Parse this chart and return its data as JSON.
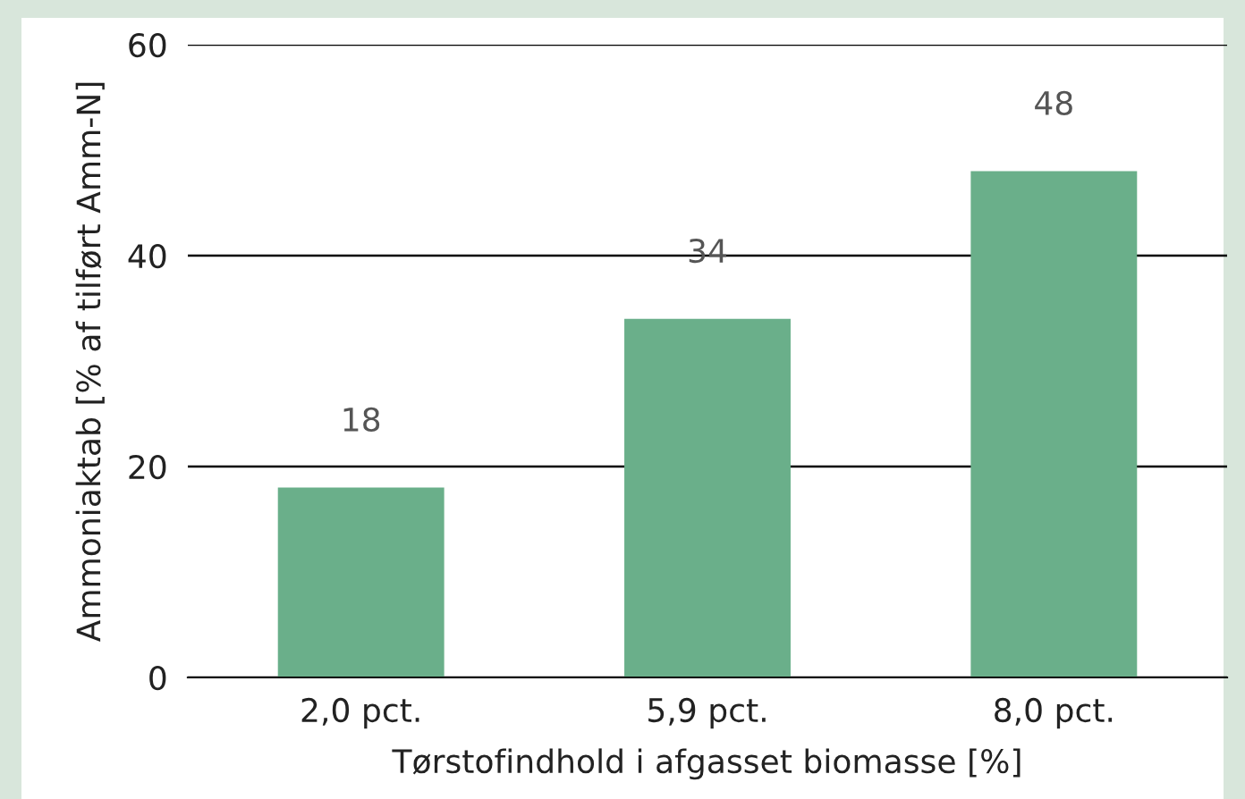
{
  "chart_data": {
    "type": "bar",
    "xlabel": "Tørstofindhold i afgasset biomasse [%]",
    "ylabel": "Ammoniaktab [% af tilført Amm-N]",
    "categories": [
      "2,0 pct.",
      "5,9 pct.",
      "8,0 pct."
    ],
    "values": [
      18,
      34,
      48
    ],
    "color": "#6aaf8a",
    "ylim": [
      0,
      60
    ],
    "yticks": [
      0,
      20,
      40,
      60
    ],
    "grid": "y",
    "data_labels": true
  }
}
